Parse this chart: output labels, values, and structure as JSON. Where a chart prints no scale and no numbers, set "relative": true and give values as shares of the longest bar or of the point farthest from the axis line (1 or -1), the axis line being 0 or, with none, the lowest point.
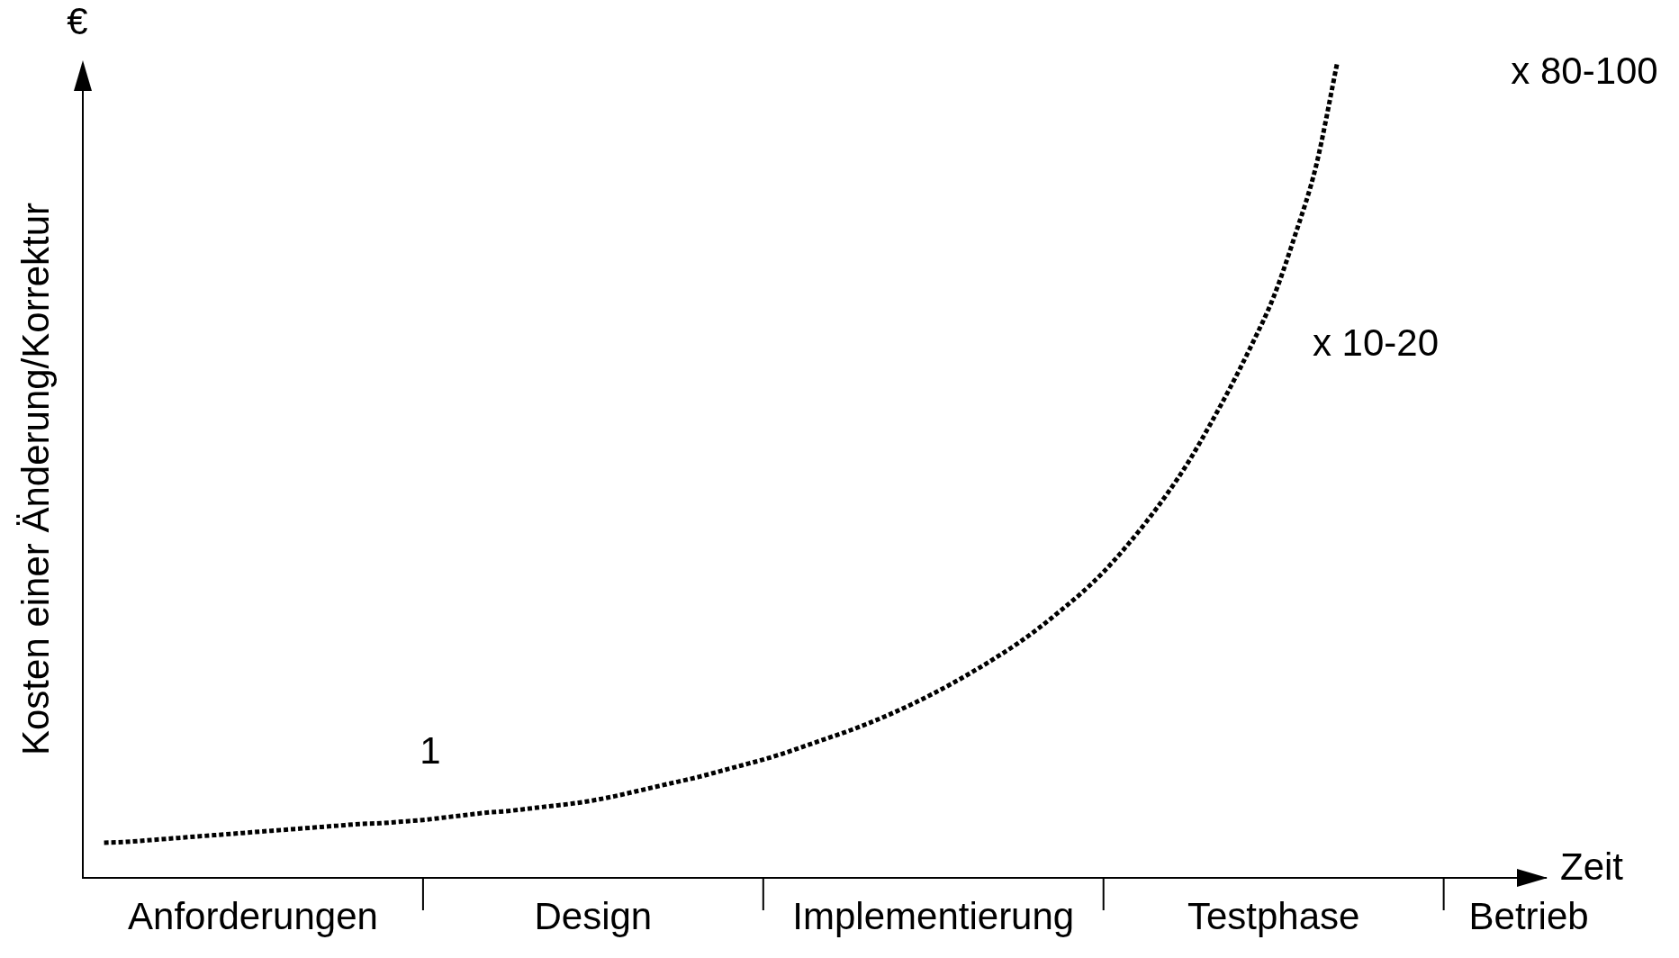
{
  "chart_data": {
    "type": "line",
    "relative": true,
    "xlabel": "Zeit",
    "ylabel": "Kosten einer Änderung/Korrektur",
    "categories": [
      null,
      null,
      null,
      null,
      null,
      null,
      null,
      null,
      "Anforderungen",
      null,
      null,
      null,
      null,
      null,
      null,
      null,
      null,
      null,
      null,
      null,
      null,
      null,
      null,
      null,
      "Design",
      null,
      null,
      null,
      null,
      null,
      null,
      null,
      null,
      null,
      null,
      null,
      null,
      null,
      null,
      null,
      "Implementierung",
      null,
      null,
      null,
      null,
      null,
      null,
      null,
      null,
      null,
      null,
      null,
      null,
      null,
      null,
      null,
      "Testphase",
      null,
      null,
      null,
      null,
      null,
      null,
      null,
      null,
      null,
      null,
      null,
      "Betrieb"
    ],
    "series": [
      {
        "color": "#000000",
        "line_style": "dotted",
        "values": [
          null,
          0.043,
          0.044,
          0.046,
          0.048,
          0.05,
          0.052,
          0.054,
          0.056,
          0.058,
          0.06,
          0.062,
          0.064,
          0.066,
          0.067,
          0.069,
          0.071,
          0.074,
          0.077,
          0.08,
          0.082,
          0.085,
          0.088,
          0.091,
          0.095,
          0.1,
          0.106,
          0.112,
          0.118,
          0.124,
          0.131,
          0.138,
          0.145,
          0.153,
          0.162,
          0.171,
          0.18,
          0.19,
          0.201,
          0.213,
          0.226,
          0.24,
          0.255,
          0.271,
          0.288,
          0.307,
          0.328,
          0.35,
          0.375,
          0.404,
          0.436,
          0.471,
          0.51,
          0.555,
          0.603,
          0.655,
          0.712,
          0.787,
          0.873,
          1.0,
          null,
          null,
          null,
          null,
          null,
          null,
          null,
          null,
          null
        ]
      }
    ],
    "annotations": [
      "€",
      "1",
      "x 10-20",
      "x 80-100"
    ],
    "grid": false,
    "legend": false
  }
}
